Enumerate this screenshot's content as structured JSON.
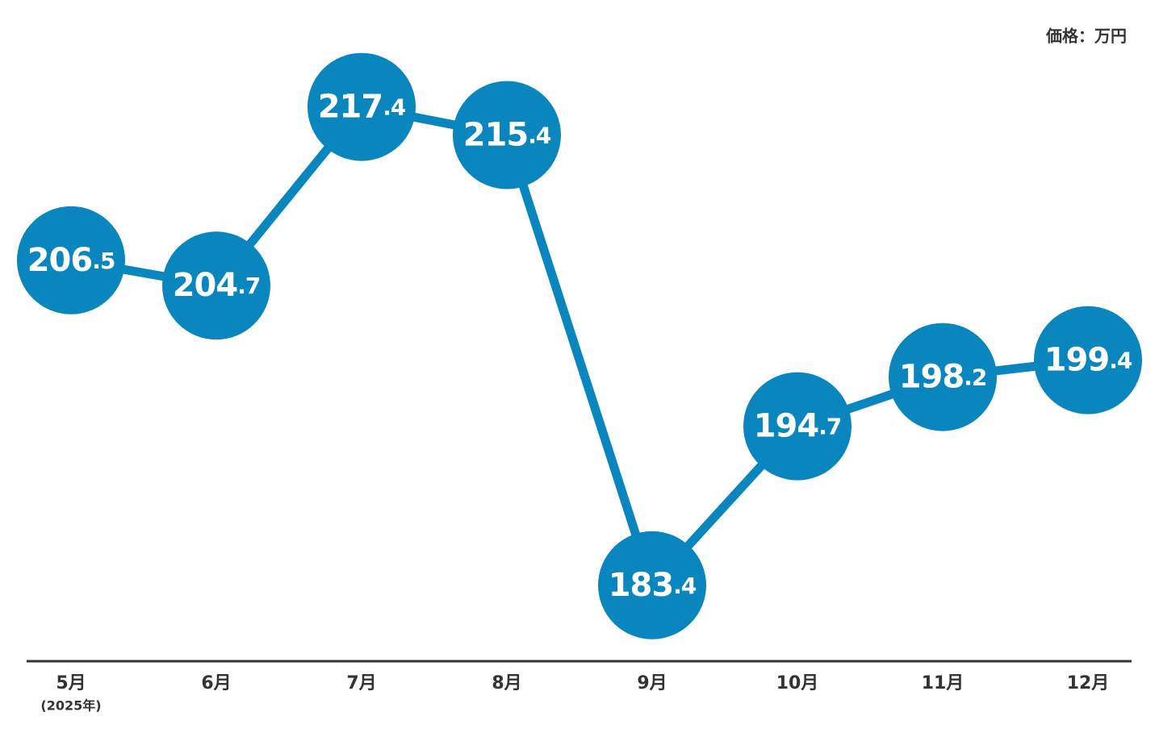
{
  "chart_data": {
    "type": "line",
    "unit_label": "価格：万円",
    "categories": [
      "5月",
      "6月",
      "7月",
      "8月",
      "9月",
      "10月",
      "11月",
      "12月"
    ],
    "first_category_note": "(2025年)",
    "series": [
      {
        "color": "#0a86bf",
        "values": [
          206.5,
          204.7,
          217.4,
          215.4,
          183.4,
          194.7,
          198.2,
          199.4
        ]
      }
    ],
    "ylim": [
      178,
      225
    ]
  }
}
